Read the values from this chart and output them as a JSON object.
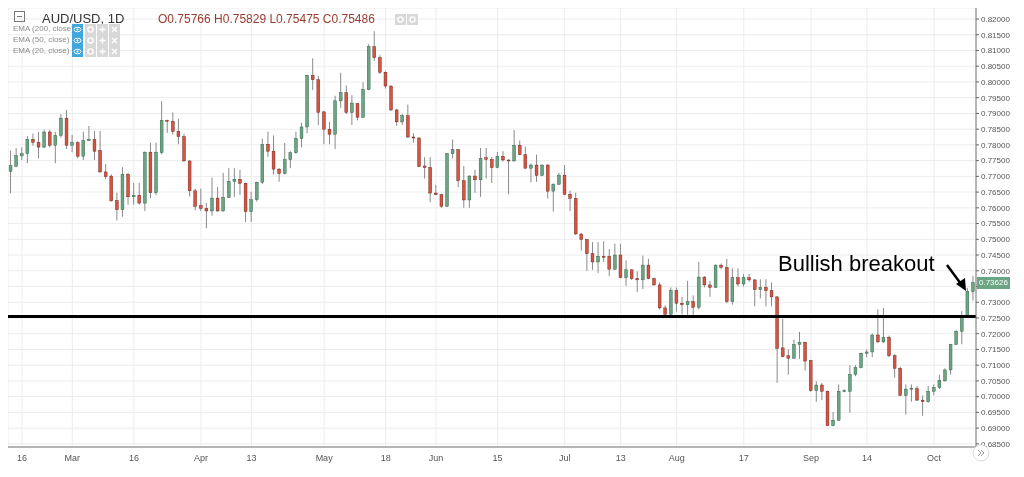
{
  "chart_data": {
    "type": "candlestick",
    "title": "AUD/USD, 1D",
    "annotations": [
      "O0.75766 H0.75829 L0.75475 C0.75486",
      "EMA (200, close)",
      "EMA (50, close)",
      "EMA (20, close)",
      "Bullish breakout",
      "0.73626"
    ],
    "categories": [
      null,
      null,
      "16",
      null,
      null,
      null,
      null,
      null,
      null,
      null,
      null,
      "Mar",
      null,
      null,
      null,
      null,
      null,
      null,
      null,
      null,
      null,
      null,
      "16",
      null,
      null,
      null,
      null,
      null,
      null,
      null,
      null,
      null,
      null,
      null,
      "Apr",
      null,
      null,
      null,
      null,
      null,
      null,
      null,
      null,
      "13",
      null,
      null,
      null,
      null,
      null,
      null,
      null,
      null,
      null,
      null,
      null,
      null,
      "May",
      null,
      null,
      null,
      null,
      null,
      null,
      null,
      null,
      null,
      null,
      "18",
      null,
      null,
      null,
      null,
      null,
      null,
      null,
      null,
      "Jun",
      null,
      null,
      null,
      null,
      null,
      null,
      null,
      null,
      null,
      null,
      "15",
      null,
      null,
      null,
      null,
      null,
      null,
      null,
      null,
      null,
      null,
      null,
      "Jul",
      null,
      null,
      null,
      null,
      null,
      null,
      null,
      null,
      null,
      "13",
      null,
      null,
      null,
      null,
      null,
      null,
      null,
      null,
      null,
      "Aug",
      null,
      null,
      null,
      null,
      null,
      null,
      null,
      null,
      null,
      null,
      null,
      "17",
      null,
      null,
      null,
      null,
      null,
      null,
      null,
      null,
      null,
      null,
      null,
      "Sep",
      null,
      null,
      null,
      null,
      null,
      null,
      null,
      null,
      null,
      "14",
      null,
      null,
      null,
      null,
      null,
      null,
      null,
      null,
      null,
      null,
      null,
      "Oct",
      null,
      null,
      null,
      null,
      null,
      null,
      null
    ],
    "ohlc": [
      [
        0.7716,
        0.7782,
        0.7646,
        0.7734
      ],
      [
        0.7732,
        0.779,
        0.773,
        0.7766
      ],
      [
        0.7765,
        0.7792,
        0.7752,
        0.7772
      ],
      [
        0.7772,
        0.7828,
        0.7742,
        0.7818
      ],
      [
        0.7818,
        0.7836,
        0.7797,
        0.7808
      ],
      [
        0.7808,
        0.7841,
        0.7757,
        0.7793
      ],
      [
        0.7793,
        0.7848,
        0.779,
        0.7841
      ],
      [
        0.7841,
        0.7848,
        0.7792,
        0.7799
      ],
      [
        0.7799,
        0.7841,
        0.7742,
        0.783
      ],
      [
        0.783,
        0.7898,
        0.7823,
        0.7885
      ],
      [
        0.7885,
        0.7911,
        0.7787,
        0.7799
      ],
      [
        0.7799,
        0.7832,
        0.7777,
        0.7807
      ],
      [
        0.7807,
        0.7812,
        0.7757,
        0.7764
      ],
      [
        0.7764,
        0.7842,
        0.7752,
        0.7814
      ],
      [
        0.7814,
        0.786,
        0.7812,
        0.7817
      ],
      [
        0.7817,
        0.7844,
        0.7752,
        0.778
      ],
      [
        0.7782,
        0.7844,
        0.7712,
        0.7714
      ],
      [
        0.7714,
        0.7739,
        0.7691,
        0.7699
      ],
      [
        0.7701,
        0.7706,
        0.762,
        0.7622
      ],
      [
        0.7623,
        0.7648,
        0.756,
        0.7594
      ],
      [
        0.7594,
        0.7729,
        0.7572,
        0.7706
      ],
      [
        0.7706,
        0.7711,
        0.761,
        0.7635
      ],
      [
        0.7635,
        0.7679,
        0.761,
        0.764
      ],
      [
        0.764,
        0.7679,
        0.761,
        0.7615
      ],
      [
        0.7615,
        0.7779,
        0.759,
        0.7777
      ],
      [
        0.7777,
        0.7807,
        0.7631,
        0.7648
      ],
      [
        0.7648,
        0.7807,
        0.764,
        0.7777
      ],
      [
        0.7775,
        0.7939,
        0.777,
        0.7878
      ],
      [
        0.7878,
        0.788,
        0.7838,
        0.7875
      ],
      [
        0.7875,
        0.7903,
        0.7833,
        0.7843
      ],
      [
        0.7843,
        0.7883,
        0.7802,
        0.7826
      ],
      [
        0.7826,
        0.7836,
        0.7747,
        0.7749
      ],
      [
        0.7749,
        0.7751,
        0.7636,
        0.7654
      ],
      [
        0.7654,
        0.7661,
        0.7592,
        0.7605
      ],
      [
        0.7607,
        0.7661,
        0.759,
        0.7598
      ],
      [
        0.7598,
        0.7615,
        0.7535,
        0.759
      ],
      [
        0.759,
        0.7696,
        0.7575,
        0.7631
      ],
      [
        0.7631,
        0.7666,
        0.7588,
        0.759
      ],
      [
        0.759,
        0.7711,
        0.7588,
        0.7633
      ],
      [
        0.7633,
        0.7726,
        0.7631,
        0.7684
      ],
      [
        0.7684,
        0.7726,
        0.7635,
        0.7691
      ],
      [
        0.7691,
        0.7721,
        0.7641,
        0.7678
      ],
      [
        0.7678,
        0.768,
        0.7555,
        0.7588
      ],
      [
        0.7588,
        0.7651,
        0.7555,
        0.7626
      ],
      [
        0.7626,
        0.7683,
        0.762,
        0.7681
      ],
      [
        0.7681,
        0.782,
        0.7676,
        0.7802
      ],
      [
        0.7802,
        0.7842,
        0.7762,
        0.778
      ],
      [
        0.778,
        0.783,
        0.7706,
        0.7723
      ],
      [
        0.7723,
        0.7726,
        0.7683,
        0.7709
      ],
      [
        0.7709,
        0.7806,
        0.7706,
        0.7753
      ],
      [
        0.7753,
        0.778,
        0.7726,
        0.7775
      ],
      [
        0.7775,
        0.7842,
        0.7772,
        0.782
      ],
      [
        0.782,
        0.787,
        0.7792,
        0.7857
      ],
      [
        0.7857,
        0.8023,
        0.7837,
        0.8021
      ],
      [
        0.8021,
        0.8075,
        0.7974,
        0.8007
      ],
      [
        0.8007,
        0.8019,
        0.7863,
        0.7903
      ],
      [
        0.7905,
        0.7907,
        0.7802,
        0.785
      ],
      [
        0.785,
        0.7873,
        0.7802,
        0.7834
      ],
      [
        0.7834,
        0.7956,
        0.7787,
        0.794
      ],
      [
        0.794,
        0.8029,
        0.7918,
        0.7966
      ],
      [
        0.7966,
        0.7989,
        0.7898,
        0.7903
      ],
      [
        0.7903,
        0.7958,
        0.7863,
        0.7933
      ],
      [
        0.7931,
        0.7933,
        0.7878,
        0.7888
      ],
      [
        0.7888,
        0.7999,
        0.7885,
        0.7976
      ],
      [
        0.7976,
        0.812,
        0.7974,
        0.8112
      ],
      [
        0.8112,
        0.8161,
        0.8067,
        0.8077
      ],
      [
        0.8077,
        0.8085,
        0.8025,
        0.8031
      ],
      [
        0.8031,
        0.8034,
        0.7979,
        0.7987
      ],
      [
        0.7987,
        0.7989,
        0.7908,
        0.7911
      ],
      [
        0.7911,
        0.7915,
        0.7861,
        0.7873
      ],
      [
        0.7873,
        0.7898,
        0.7863,
        0.7893
      ],
      [
        0.7893,
        0.7928,
        0.7822,
        0.7825
      ],
      [
        0.7825,
        0.7837,
        0.7807,
        0.7822
      ],
      [
        0.7822,
        0.7824,
        0.7729,
        0.7731
      ],
      [
        0.7733,
        0.7761,
        0.7693,
        0.7728
      ],
      [
        0.7728,
        0.7761,
        0.7618,
        0.7647
      ],
      [
        0.7647,
        0.7673,
        0.764,
        0.7642
      ],
      [
        0.7642,
        0.7645,
        0.76,
        0.7605
      ],
      [
        0.7605,
        0.7774,
        0.7603,
        0.7772
      ],
      [
        0.7772,
        0.7817,
        0.7757,
        0.7785
      ],
      [
        0.7785,
        0.7787,
        0.7666,
        0.7686
      ],
      [
        0.7686,
        0.7733,
        0.76,
        0.7625
      ],
      [
        0.7625,
        0.7703,
        0.76,
        0.7701
      ],
      [
        0.7701,
        0.7721,
        0.7648,
        0.7689
      ],
      [
        0.7689,
        0.779,
        0.7635,
        0.7757
      ],
      [
        0.7759,
        0.779,
        0.7693,
        0.7754
      ],
      [
        0.7754,
        0.7761,
        0.7679,
        0.7728
      ],
      [
        0.7728,
        0.7777,
        0.7726,
        0.7764
      ],
      [
        0.7764,
        0.778,
        0.7747,
        0.7752
      ],
      [
        0.7752,
        0.7754,
        0.7643,
        0.7749
      ],
      [
        0.7749,
        0.7847,
        0.7747,
        0.7799
      ],
      [
        0.7799,
        0.7814,
        0.7767,
        0.7769
      ],
      [
        0.7769,
        0.7794,
        0.7723,
        0.7726
      ],
      [
        0.7726,
        0.7741,
        0.7681,
        0.7736
      ],
      [
        0.7736,
        0.7769,
        0.7683,
        0.7703
      ],
      [
        0.7703,
        0.7738,
        0.7701,
        0.7736
      ],
      [
        0.7736,
        0.7738,
        0.763,
        0.7653
      ],
      [
        0.7653,
        0.7678,
        0.7588,
        0.7675
      ],
      [
        0.7675,
        0.7711,
        0.7673,
        0.7704
      ],
      [
        0.7704,
        0.7736,
        0.764,
        0.7643
      ],
      [
        0.7643,
        0.7655,
        0.759,
        0.763
      ],
      [
        0.763,
        0.7648,
        0.7514,
        0.7517
      ],
      [
        0.7517,
        0.7519,
        0.7464,
        0.7499
      ],
      [
        0.7499,
        0.7501,
        0.74,
        0.7454
      ],
      [
        0.7454,
        0.7491,
        0.7403,
        0.7428
      ],
      [
        0.7428,
        0.7491,
        0.7393,
        0.7446
      ],
      [
        0.7446,
        0.7494,
        0.7428,
        0.7443
      ],
      [
        0.7446,
        0.7469,
        0.7383,
        0.7405
      ],
      [
        0.7405,
        0.7486,
        0.7403,
        0.745
      ],
      [
        0.745,
        0.7486,
        0.7376,
        0.7378
      ],
      [
        0.7378,
        0.7433,
        0.7352,
        0.7403
      ],
      [
        0.7403,
        0.7405,
        0.7371,
        0.7375
      ],
      [
        0.7375,
        0.7398,
        0.7332,
        0.7371
      ],
      [
        0.7371,
        0.7448,
        0.7342,
        0.7418
      ],
      [
        0.7418,
        0.7438,
        0.7373,
        0.7375
      ],
      [
        0.7375,
        0.7378,
        0.7353,
        0.7355
      ],
      [
        0.7355,
        0.7363,
        0.7277,
        0.7282
      ],
      [
        0.7282,
        0.729,
        0.7255,
        0.7262
      ],
      [
        0.7262,
        0.7347,
        0.7257,
        0.7337
      ],
      [
        0.7337,
        0.7347,
        0.727,
        0.7297
      ],
      [
        0.7297,
        0.7317,
        0.7262,
        0.7292
      ],
      [
        0.7292,
        0.7368,
        0.726,
        0.7302
      ],
      [
        0.7302,
        0.7322,
        0.726,
        0.7284
      ],
      [
        0.7284,
        0.7428,
        0.7277,
        0.738
      ],
      [
        0.738,
        0.7383,
        0.7347,
        0.7355
      ],
      [
        0.7355,
        0.7368,
        0.7317,
        0.7347
      ],
      [
        0.7347,
        0.742,
        0.7345,
        0.7418
      ],
      [
        0.7418,
        0.7423,
        0.7405,
        0.7411
      ],
      [
        0.7411,
        0.7438,
        0.7297,
        0.7302
      ],
      [
        0.7302,
        0.7408,
        0.7292,
        0.7378
      ],
      [
        0.7378,
        0.7408,
        0.735,
        0.7358
      ],
      [
        0.7358,
        0.739,
        0.735,
        0.7378
      ],
      [
        0.7378,
        0.739,
        0.7365,
        0.7371
      ],
      [
        0.7371,
        0.7373,
        0.7287,
        0.734
      ],
      [
        0.734,
        0.7373,
        0.7312,
        0.7347
      ],
      [
        0.7347,
        0.7373,
        0.7287,
        0.7337
      ],
      [
        0.7337,
        0.7363,
        0.7287,
        0.7317
      ],
      [
        0.7317,
        0.7319,
        0.7044,
        0.7153
      ],
      [
        0.7155,
        0.7248,
        0.7125,
        0.7127
      ],
      [
        0.713,
        0.715,
        0.707,
        0.7122
      ],
      [
        0.7122,
        0.7181,
        0.712,
        0.7166
      ],
      [
        0.7166,
        0.7206,
        0.712,
        0.7173
      ],
      [
        0.7173,
        0.7175,
        0.7083,
        0.7113
      ],
      [
        0.7115,
        0.7117,
        0.7016,
        0.7019
      ],
      [
        0.7019,
        0.7049,
        0.6984,
        0.7037
      ],
      [
        0.7037,
        0.7044,
        0.6989,
        0.7017
      ],
      [
        0.7017,
        0.7019,
        0.6906,
        0.6908
      ],
      [
        0.6908,
        0.6951,
        0.6906,
        0.6925
      ],
      [
        0.6925,
        0.7039,
        0.6923,
        0.7017
      ],
      [
        0.7016,
        0.7024,
        0.7014,
        0.7019
      ],
      [
        0.7017,
        0.71,
        0.6949,
        0.7071
      ],
      [
        0.7071,
        0.71,
        0.7065,
        0.7092
      ],
      [
        0.7092,
        0.714,
        0.709,
        0.7138
      ],
      [
        0.7138,
        0.715,
        0.7125,
        0.7142
      ],
      [
        0.7142,
        0.7201,
        0.7125,
        0.7196
      ],
      [
        0.7196,
        0.7277,
        0.7171,
        0.7174
      ],
      [
        0.7174,
        0.7282,
        0.7171,
        0.7188
      ],
      [
        0.7188,
        0.7194,
        0.7125,
        0.713
      ],
      [
        0.713,
        0.7135,
        0.706,
        0.709
      ],
      [
        0.709,
        0.7095,
        0.7002,
        0.7004
      ],
      [
        0.7004,
        0.7039,
        0.6943,
        0.7024
      ],
      [
        0.7024,
        0.7039,
        0.6984,
        0.7027
      ],
      [
        0.7025,
        0.7034,
        0.6986,
        0.6989
      ],
      [
        0.6989,
        0.7004,
        0.6939,
        0.6984
      ],
      [
        0.6984,
        0.7034,
        0.6981,
        0.7017
      ],
      [
        0.7017,
        0.7039,
        0.7004,
        0.7029
      ],
      [
        0.7029,
        0.707,
        0.7024,
        0.7052
      ],
      [
        0.705,
        0.709,
        0.7048,
        0.7085
      ],
      [
        0.7085,
        0.7168,
        0.707,
        0.7166
      ],
      [
        0.7166,
        0.7211,
        0.7164,
        0.7208
      ],
      [
        0.7208,
        0.7272,
        0.7166,
        0.7251
      ],
      [
        0.7251,
        0.7346,
        0.7251,
        0.7334
      ],
      [
        0.7334,
        0.7383,
        0.7305,
        0.7362
      ]
    ],
    "colors": [
      "#6ba583",
      "#6ba583",
      "#6ba583",
      "#6ba583",
      "#d75442",
      "#d75442",
      "#6ba583",
      "#d75442",
      "#6ba583",
      "#6ba583",
      "#d75442",
      "#6ba583",
      "#d75442",
      "#6ba583",
      "#6ba583",
      "#d75442",
      "#d75442",
      "#d75442",
      "#d75442",
      "#d75442",
      "#6ba583",
      "#d75442",
      "#6ba583",
      "#d75442",
      "#6ba583",
      "#d75442",
      "#6ba583",
      "#6ba583",
      "#d75442",
      "#d75442",
      "#d75442",
      "#d75442",
      "#d75442",
      "#d75442",
      "#d75442",
      "#d75442",
      "#6ba583",
      "#d75442",
      "#6ba583",
      "#6ba583",
      "#6ba583",
      "#d75442",
      "#d75442",
      "#6ba583",
      "#6ba583",
      "#6ba583",
      "#d75442",
      "#d75442",
      "#d75442",
      "#6ba583",
      "#6ba583",
      "#6ba583",
      "#6ba583",
      "#6ba583",
      "#d75442",
      "#d75442",
      "#d75442",
      "#d75442",
      "#6ba583",
      "#6ba583",
      "#d75442",
      "#6ba583",
      "#d75442",
      "#6ba583",
      "#6ba583",
      "#d75442",
      "#d75442",
      "#d75442",
      "#d75442",
      "#d75442",
      "#6ba583",
      "#d75442",
      "#d75442",
      "#d75442",
      "#d75442",
      "#d75442",
      "#d75442",
      "#d75442",
      "#6ba583",
      "#6ba583",
      "#d75442",
      "#d75442",
      "#6ba583",
      "#d75442",
      "#6ba583",
      "#d75442",
      "#d75442",
      "#6ba583",
      "#d75442",
      "#d75442",
      "#6ba583",
      "#d75442",
      "#d75442",
      "#6ba583",
      "#d75442",
      "#6ba583",
      "#d75442",
      "#6ba583",
      "#6ba583",
      "#d75442",
      "#d75442",
      "#d75442",
      "#d75442",
      "#d75442",
      "#d75442",
      "#6ba583",
      "#d75442",
      "#d75442",
      "#6ba583",
      "#d75442",
      "#6ba583",
      "#d75442",
      "#d75442",
      "#6ba583",
      "#d75442",
      "#d75442",
      "#d75442",
      "#d75442",
      "#6ba583",
      "#d75442",
      "#d75442",
      "#6ba583",
      "#d75442",
      "#6ba583",
      "#d75442",
      "#d75442",
      "#6ba583",
      "#d75442",
      "#d75442",
      "#6ba583",
      "#d75442",
      "#6ba583",
      "#d75442",
      "#d75442",
      "#6ba583",
      "#d75442",
      "#d75442",
      "#d75442",
      "#d75442",
      "#d75442",
      "#6ba583",
      "#6ba583",
      "#d75442",
      "#d75442",
      "#6ba583",
      "#d75442",
      "#d75442",
      "#6ba583",
      "#6ba583",
      "#6ba583",
      "#6ba583",
      "#6ba583",
      "#6ba583",
      "#6ba583",
      "#6ba583",
      "#d75442",
      "#6ba583",
      "#d75442",
      "#d75442",
      "#d75442",
      "#6ba583",
      "#6ba583",
      "#d75442",
      "#d75442",
      "#6ba583",
      "#6ba583",
      "#6ba583",
      "#6ba583",
      "#6ba583",
      "#6ba583",
      "#6ba583",
      "#6ba583",
      "#6ba583"
    ],
    "ylim": [
      0.684,
      0.8235
    ],
    "yticks": [
      {
        "value": 0.685,
        "label": "0.68500"
      },
      {
        "value": 0.69,
        "label": "0.69000"
      },
      {
        "value": 0.695,
        "label": "0.69500"
      },
      {
        "value": 0.7,
        "label": "0.70000"
      },
      {
        "value": 0.705,
        "label": "0.70500"
      },
      {
        "value": 0.71,
        "label": "0.71000"
      },
      {
        "value": 0.715,
        "label": "0.71500"
      },
      {
        "value": 0.72,
        "label": "0.72000"
      },
      {
        "value": 0.725,
        "label": "0.72500"
      },
      {
        "value": 0.73,
        "label": "0.73000"
      },
      {
        "value": 0.735,
        "label": null
      },
      {
        "value": 0.74,
        "label": "0.74000"
      },
      {
        "value": 0.745,
        "label": "0.74500"
      },
      {
        "value": 0.75,
        "label": "0.75000"
      },
      {
        "value": 0.755,
        "label": "0.75500"
      },
      {
        "value": 0.76,
        "label": "0.76000"
      },
      {
        "value": 0.765,
        "label": "0.76500"
      },
      {
        "value": 0.77,
        "label": "0.77000"
      },
      {
        "value": 0.775,
        "label": "0.77500"
      },
      {
        "value": 0.78,
        "label": "0.78000"
      },
      {
        "value": 0.785,
        "label": "0.78500"
      },
      {
        "value": 0.79,
        "label": "0.79000"
      },
      {
        "value": 0.795,
        "label": "0.79500"
      },
      {
        "value": 0.8,
        "label": "0.80000"
      },
      {
        "value": 0.805,
        "label": "0.80500"
      },
      {
        "value": 0.81,
        "label": "0.81000"
      },
      {
        "value": 0.815,
        "label": "0.81500"
      },
      {
        "value": 0.82,
        "label": "0.82000"
      }
    ],
    "ref_lines": [
      {
        "axis": "y",
        "value": 0.7255,
        "color": "#000000"
      }
    ],
    "grid": true
  }
}
